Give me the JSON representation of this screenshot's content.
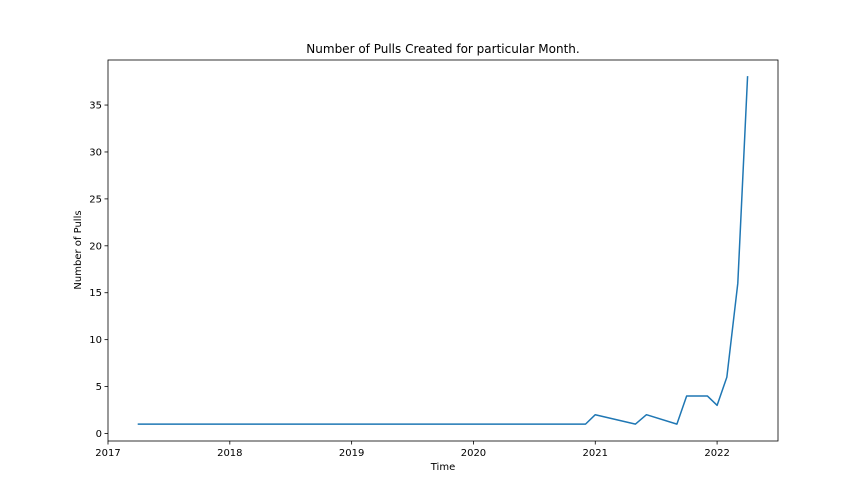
{
  "chart_data": {
    "type": "line",
    "title": "Number of Pulls Created for particular Month.",
    "xlabel": "Time",
    "ylabel": "Number of Pulls",
    "xlim": [
      2017.0,
      2022.5
    ],
    "ylim": [
      -0.8,
      39.8
    ],
    "xticks": [
      {
        "value": 2017,
        "label": "2017"
      },
      {
        "value": 2018,
        "label": "2018"
      },
      {
        "value": 2019,
        "label": "2019"
      },
      {
        "value": 2020,
        "label": "2020"
      },
      {
        "value": 2021,
        "label": "2021"
      },
      {
        "value": 2022,
        "label": "2022"
      }
    ],
    "yticks": [
      {
        "value": 0,
        "label": "0"
      },
      {
        "value": 5,
        "label": "5"
      },
      {
        "value": 10,
        "label": "10"
      },
      {
        "value": 15,
        "label": "15"
      },
      {
        "value": 20,
        "label": "20"
      },
      {
        "value": 25,
        "label": "25"
      },
      {
        "value": 30,
        "label": "30"
      },
      {
        "value": 35,
        "label": "35"
      }
    ],
    "grid": false,
    "series": [
      {
        "name": "pulls",
        "color": "#1f77b4",
        "points": [
          {
            "x": 2017.25,
            "y": 1
          },
          {
            "x": 2020.92,
            "y": 1
          },
          {
            "x": 2021.0,
            "y": 2
          },
          {
            "x": 2021.33,
            "y": 1
          },
          {
            "x": 2021.42,
            "y": 2
          },
          {
            "x": 2021.67,
            "y": 1
          },
          {
            "x": 2021.75,
            "y": 4
          },
          {
            "x": 2021.92,
            "y": 4
          },
          {
            "x": 2022.0,
            "y": 3
          },
          {
            "x": 2022.08,
            "y": 6
          },
          {
            "x": 2022.17,
            "y": 16
          },
          {
            "x": 2022.25,
            "y": 38
          }
        ]
      }
    ]
  }
}
